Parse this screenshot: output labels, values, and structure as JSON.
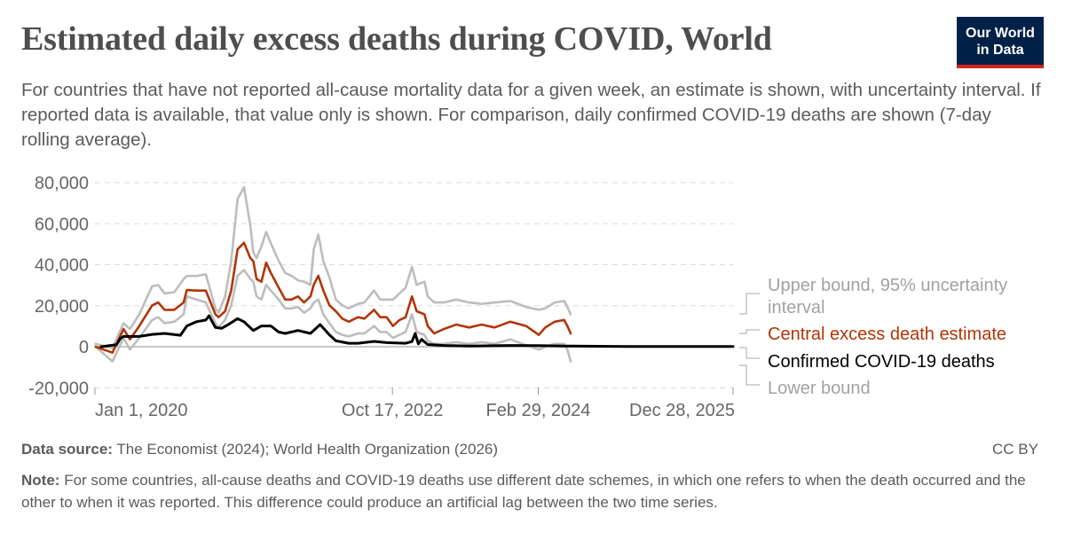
{
  "header": {
    "title": "Estimated daily excess deaths during COVID, World",
    "subtitle": "For countries that have not reported all-cause mortality data for a given week, an estimate is shown, with uncertainty interval. If reported data is available, that value only is shown. For comparison, daily confirmed COVID-19 deaths are shown (7-day rolling average).",
    "logo_text": "Our World in Data"
  },
  "footer": {
    "source_label": "Data source:",
    "source_text": "The Economist (2024); World Health Organization (2026)",
    "license": "CC BY",
    "note_label": "Note:",
    "note_text": "For some countries, all-cause deaths and COVID-19 deaths use different date schemes, in which one refers to when the death occurred and the other to when it was reported. This difference could produce an artificial lag between the two time series."
  },
  "chart_data": {
    "type": "line",
    "title": "Estimated daily excess deaths during COVID, World",
    "xlabel": "",
    "ylabel": "",
    "ylim": [
      -20000,
      80000
    ],
    "xlim": [
      "2020-01-01",
      "2025-12-28"
    ],
    "y_ticks": [
      -20000,
      0,
      20000,
      40000,
      60000,
      80000
    ],
    "y_tick_labels": [
      "-20,000",
      "0",
      "20,000",
      "40,000",
      "60,000",
      "80,000"
    ],
    "x_ticks": [
      "2020-01-01",
      "2022-10-17",
      "2024-02-29",
      "2025-12-28"
    ],
    "x_tick_labels": [
      "Jan 1, 2020",
      "Oct 17, 2022",
      "Feb 29, 2024",
      "Dec 28, 2025"
    ],
    "grid": "horizontal dashed",
    "legend_placement": "right (line-end labels)",
    "series": [
      {
        "name": "Upper bound, 95% uncertainty interval",
        "color": "#bdbdbd",
        "x": [
          "2020-01-03",
          "2020-03-01",
          "2020-04-08",
          "2020-04-30",
          "2020-06-01",
          "2020-07-15",
          "2020-08-05",
          "2020-08-27",
          "2020-09-29",
          "2020-10-31",
          "2020-11-11",
          "2020-12-14",
          "2021-01-15",
          "2021-02-17",
          "2021-02-28",
          "2021-03-22",
          "2021-04-12",
          "2021-05-04",
          "2021-05-26",
          "2021-06-17",
          "2021-06-27",
          "2021-07-08",
          "2021-07-25",
          "2021-08-10",
          "2021-08-26",
          "2021-09-22",
          "2021-10-14",
          "2021-11-05",
          "2021-11-27",
          "2021-12-18",
          "2022-01-09",
          "2022-01-20",
          "2022-02-05",
          "2022-02-22",
          "2022-03-15",
          "2022-04-06",
          "2022-04-28",
          "2022-05-20",
          "2022-06-21",
          "2022-07-13",
          "2022-08-15",
          "2022-09-05",
          "2022-09-27",
          "2022-10-19",
          "2022-11-10",
          "2022-12-01",
          "2022-12-23",
          "2023-01-08",
          "2023-02-04",
          "2023-02-15",
          "2023-03-09",
          "2023-04-11",
          "2023-05-24",
          "2023-07-07",
          "2023-08-19",
          "2023-10-02",
          "2023-11-25",
          "2024-01-18",
          "2024-03-02",
          "2024-03-24",
          "2024-04-25",
          "2024-05-28",
          "2024-06-08",
          "2024-06-19"
        ],
        "values": [
          1400,
          -700,
          11500,
          8600,
          15800,
          29500,
          30000,
          26000,
          26600,
          33000,
          34500,
          34500,
          35300,
          18700,
          16600,
          24500,
          41800,
          72000,
          77800,
          59000,
          46000,
          43200,
          49000,
          56000,
          50400,
          41800,
          36000,
          34600,
          32400,
          31700,
          30200,
          47500,
          54700,
          41800,
          33800,
          23000,
          20200,
          18700,
          20900,
          21600,
          27400,
          23000,
          23000,
          23000,
          26000,
          28800,
          38900,
          30200,
          31700,
          24500,
          21600,
          21600,
          23000,
          21600,
          20900,
          21600,
          22300,
          19400,
          18000,
          18700,
          21600,
          22300,
          19400,
          15800
        ]
      },
      {
        "name": "Central excess death estimate",
        "color": "#b13507",
        "x": [
          "2020-01-03",
          "2020-03-01",
          "2020-04-08",
          "2020-04-30",
          "2020-06-01",
          "2020-07-15",
          "2020-08-05",
          "2020-08-27",
          "2020-09-29",
          "2020-10-31",
          "2020-11-11",
          "2020-12-14",
          "2021-01-15",
          "2021-02-17",
          "2021-02-28",
          "2021-03-22",
          "2021-04-12",
          "2021-05-04",
          "2021-05-26",
          "2021-06-17",
          "2021-06-27",
          "2021-07-08",
          "2021-07-25",
          "2021-08-10",
          "2021-08-26",
          "2021-09-22",
          "2021-10-14",
          "2021-11-05",
          "2021-11-27",
          "2021-12-18",
          "2022-01-09",
          "2022-01-20",
          "2022-02-05",
          "2022-02-22",
          "2022-03-15",
          "2022-04-06",
          "2022-04-28",
          "2022-05-20",
          "2022-06-21",
          "2022-07-13",
          "2022-08-15",
          "2022-09-05",
          "2022-09-27",
          "2022-10-19",
          "2022-11-10",
          "2022-12-01",
          "2022-12-23",
          "2023-01-08",
          "2023-02-04",
          "2023-02-15",
          "2023-03-09",
          "2023-04-11",
          "2023-05-24",
          "2023-07-07",
          "2023-08-19",
          "2023-10-02",
          "2023-11-25",
          "2024-01-18",
          "2024-03-02",
          "2024-03-24",
          "2024-04-25",
          "2024-05-28",
          "2024-06-08",
          "2024-06-19"
        ],
        "values": [
          0,
          -2900,
          8640,
          3600,
          10080,
          20160,
          21600,
          18000,
          18000,
          21600,
          27650,
          27360,
          27360,
          15840,
          14400,
          17280,
          27360,
          47500,
          50700,
          43200,
          41760,
          33000,
          31700,
          41000,
          36000,
          28800,
          23000,
          23000,
          24500,
          21600,
          24500,
          30200,
          34600,
          27400,
          20200,
          17300,
          13700,
          12200,
          14400,
          13700,
          18000,
          14400,
          14400,
          10100,
          13000,
          14400,
          24500,
          17300,
          15800,
          10100,
          6500,
          8600,
          10800,
          9400,
          10800,
          9400,
          12200,
          10100,
          5800,
          9400,
          12200,
          13000,
          10100,
          6500
        ]
      },
      {
        "name": "Confirmed COVID-19 deaths",
        "color": "#000000",
        "x": [
          "2020-01-22",
          "2020-03-15",
          "2020-03-28",
          "2020-04-08",
          "2020-06-01",
          "2020-07-15",
          "2020-08-27",
          "2020-10-20",
          "2020-11-11",
          "2020-12-14",
          "2021-01-15",
          "2021-01-26",
          "2021-02-17",
          "2021-03-11",
          "2021-04-02",
          "2021-05-04",
          "2021-05-26",
          "2021-06-27",
          "2021-07-25",
          "2021-08-26",
          "2021-09-22",
          "2021-10-14",
          "2021-11-27",
          "2022-01-09",
          "2022-02-11",
          "2022-03-15",
          "2022-04-06",
          "2022-05-20",
          "2022-06-21",
          "2022-08-15",
          "2022-09-27",
          "2022-12-01",
          "2022-12-23",
          "2023-01-03",
          "2023-01-14",
          "2023-01-25",
          "2023-02-15",
          "2023-04-11",
          "2023-07-07",
          "2023-11-25",
          "2024-03-02",
          "2024-06-19",
          "2025-01-01",
          "2025-12-28"
        ],
        "values": [
          0,
          1000,
          4000,
          5000,
          5000,
          6000,
          6500,
          5600,
          10100,
          12200,
          13000,
          15100,
          9400,
          9000,
          10800,
          13700,
          12200,
          7900,
          10100,
          10100,
          7200,
          6500,
          7900,
          6500,
          10800,
          5800,
          2900,
          1700,
          1700,
          2600,
          2000,
          1700,
          2500,
          6500,
          1400,
          3600,
          1100,
          600,
          300,
          600,
          500,
          300,
          150,
          100
        ]
      },
      {
        "name": "Lower bound",
        "color": "#bdbdbd",
        "x": [
          "2020-01-03",
          "2020-03-01",
          "2020-04-08",
          "2020-04-30",
          "2020-06-01",
          "2020-07-15",
          "2020-08-05",
          "2020-08-27",
          "2020-09-29",
          "2020-10-31",
          "2020-11-11",
          "2020-12-14",
          "2021-01-15",
          "2021-02-17",
          "2021-02-28",
          "2021-03-22",
          "2021-04-12",
          "2021-05-04",
          "2021-05-26",
          "2021-06-17",
          "2021-06-27",
          "2021-07-08",
          "2021-07-25",
          "2021-08-10",
          "2021-08-26",
          "2021-09-22",
          "2021-10-14",
          "2021-11-05",
          "2021-11-27",
          "2021-12-18",
          "2022-01-09",
          "2022-01-20",
          "2022-02-05",
          "2022-02-22",
          "2022-03-15",
          "2022-04-06",
          "2022-04-28",
          "2022-05-20",
          "2022-06-21",
          "2022-07-13",
          "2022-08-15",
          "2022-09-05",
          "2022-09-27",
          "2022-10-19",
          "2022-11-10",
          "2022-12-01",
          "2022-12-23",
          "2023-01-08",
          "2023-02-04",
          "2023-02-15",
          "2023-03-09",
          "2023-04-11",
          "2023-05-24",
          "2023-07-07",
          "2023-08-19",
          "2023-10-02",
          "2023-11-25",
          "2024-01-18",
          "2024-03-02",
          "2024-03-24",
          "2024-04-25",
          "2024-05-28",
          "2024-06-08",
          "2024-06-19"
        ],
        "values": [
          0,
          -7200,
          4300,
          -1400,
          4300,
          13000,
          14400,
          11500,
          12200,
          15800,
          24500,
          23000,
          21600,
          11500,
          9400,
          13000,
          20200,
          34600,
          37400,
          33100,
          31700,
          24500,
          23000,
          30200,
          27400,
          23000,
          18700,
          18700,
          19400,
          16600,
          18700,
          21600,
          23000,
          15800,
          11500,
          7200,
          5800,
          5000,
          6500,
          6500,
          10100,
          7200,
          7200,
          4300,
          5800,
          7200,
          15800,
          7200,
          5800,
          2900,
          1400,
          1400,
          2200,
          1400,
          2200,
          1400,
          3600,
          700,
          -1400,
          0,
          1400,
          1400,
          -1400,
          -7200
        ]
      }
    ],
    "legend": {
      "upper_line1": "Upper bound, 95% uncertainty",
      "upper_line2": "interval",
      "central": "Central excess death estimate",
      "confirmed": "Confirmed COVID-19 deaths",
      "lower": "Lower bound"
    }
  }
}
